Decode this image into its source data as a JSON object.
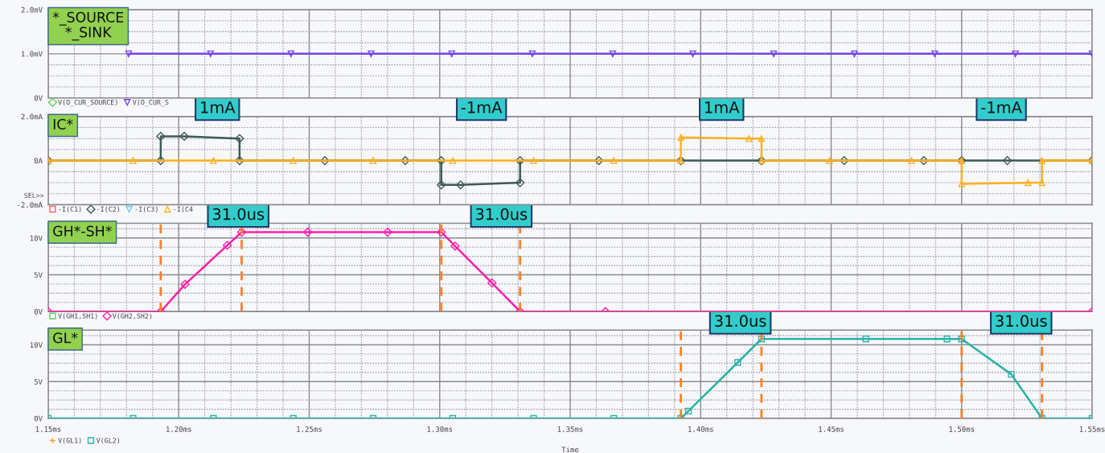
{
  "chart_data": [
    {
      "type": "line",
      "title": "*_SOURCE\n*_SINK",
      "xlim": [
        1.15,
        1.55
      ],
      "xticks": [
        1.15,
        1.2,
        1.25,
        1.3,
        1.35,
        1.4,
        1.45,
        1.5,
        1.55
      ],
      "tick_labels": "y",
      "ylim": [
        0,
        2
      ],
      "yticks": [
        {
          "value": 0,
          "label": "0V"
        },
        {
          "value": 1,
          "label": "1.0mV"
        },
        {
          "value": 2,
          "label": "2.0mV"
        }
      ],
      "grid": true,
      "legend": "bottom left",
      "series": [
        {
          "name": "V(O_CUR_SOURCE)",
          "color": "#5fd35f",
          "marker": "diamond"
        },
        {
          "name": "V(O_CUR_S",
          "color": "#7444e8",
          "marker": "triangle_down",
          "x": [
            1.1808,
            1.2122,
            1.243,
            1.2737,
            1.3046,
            1.3355,
            1.3663,
            1.397,
            1.428,
            1.4589,
            1.4897,
            1.5206,
            1.55
          ],
          "values": [
            1,
            1,
            1,
            1,
            1,
            1,
            1,
            1,
            1,
            1,
            1,
            1,
            1
          ]
        }
      ]
    },
    {
      "type": "line",
      "title": "IC*",
      "xlim": [
        1.15,
        1.55
      ],
      "xticks": [
        1.15,
        1.2,
        1.25,
        1.3,
        1.35,
        1.4,
        1.45,
        1.5,
        1.55
      ],
      "tick_labels": "y",
      "ylim": [
        -2,
        2
      ],
      "yticks": [
        {
          "value": -2,
          "label": "-2.0mA"
        },
        {
          "value": 0,
          "label": "0A"
        },
        {
          "value": 2,
          "label": "2.0mA"
        }
      ],
      "grid": true,
      "legend": "bottom left",
      "annotations": [
        "1mA",
        "-1mA",
        "1mA",
        "-1mA",
        "SEL>>"
      ],
      "series": [
        {
          "name": "-I(C1)",
          "color": "#ff6666",
          "marker": "square"
        },
        {
          "name": "-I(C2)",
          "color": "#3d5a56",
          "marker": "diamond",
          "x": [
            1.15,
            1.1931,
            1.1931,
            1.2021,
            1.2233,
            1.2233,
            1.256,
            1.2868,
            1.3006,
            1.3006,
            1.308,
            1.3308,
            1.3308,
            1.361,
            1.3924,
            1.4233,
            1.455,
            1.4855,
            1.5,
            1.5175,
            1.55
          ],
          "values": [
            0,
            0,
            1.1,
            1.1,
            1.0,
            0,
            0,
            0,
            0,
            -1.1,
            -1.1,
            -1.0,
            0,
            0,
            0,
            0,
            0,
            0,
            0,
            0,
            0
          ]
        },
        {
          "name": "-I(C3)",
          "color": "#66ccff",
          "marker": "triangle_down"
        },
        {
          "name": "-I(C4",
          "color": "#ffb020",
          "marker": "triangle",
          "x": [
            1.15,
            1.1825,
            1.2133,
            1.2439,
            1.2745,
            1.305,
            1.336,
            1.3667,
            1.3924,
            1.3924,
            1.4185,
            1.4233,
            1.4233,
            1.4494,
            1.4808,
            1.5,
            1.5,
            1.5254,
            1.5308,
            1.5308,
            1.55
          ],
          "values": [
            0,
            0,
            0,
            0,
            0,
            0,
            0,
            0,
            0,
            1.05,
            1.0,
            1.0,
            0,
            0,
            0,
            0,
            -1.05,
            -1.0,
            -1.0,
            0,
            0
          ]
        }
      ]
    },
    {
      "type": "line",
      "title": "GH*-SH*",
      "xlim": [
        1.15,
        1.55
      ],
      "xticks": [
        1.15,
        1.2,
        1.25,
        1.3,
        1.35,
        1.4,
        1.45,
        1.5,
        1.55
      ],
      "tick_labels": "y",
      "ylim": [
        0,
        12
      ],
      "yticks": [
        {
          "value": 0,
          "label": "0V"
        },
        {
          "value": 5,
          "label": "5V"
        },
        {
          "value": 10,
          "label": "10V"
        }
      ],
      "grid": true,
      "legend": "bottom left",
      "annotations": [
        "31.0us",
        "31.0us"
      ],
      "ref_lines": [
        {
          "axis": "x",
          "value": 1.1931,
          "color": "#ff7f27",
          "line_style": "dashed"
        },
        {
          "axis": "x",
          "value": 1.2241,
          "color": "#ff7f27",
          "line_style": "dashed"
        },
        {
          "axis": "x",
          "value": 1.3006,
          "color": "#ff7f27",
          "line_style": "dashed"
        },
        {
          "axis": "x",
          "value": 1.3308,
          "color": "#ff7f27",
          "line_style": "dashed"
        }
      ],
      "series": [
        {
          "name": "V(GH1,SH1)",
          "color": "#5fd35f",
          "marker": "square"
        },
        {
          "name": "V(GH2,SH2)",
          "color": "#ff1fa8",
          "marker": "diamond",
          "x": [
            1.15,
            1.1931,
            1.2024,
            1.2186,
            1.2241,
            1.2494,
            1.28,
            1.3006,
            1.3059,
            1.32,
            1.3308,
            1.3635,
            1.55
          ],
          "values": [
            0,
            0,
            3.7,
            9.0,
            10.8,
            10.8,
            10.8,
            10.8,
            8.9,
            3.9,
            0,
            0,
            0
          ]
        }
      ]
    },
    {
      "type": "line",
      "title": "GL*",
      "xlabel": "Time",
      "xlim": [
        1.15,
        1.55
      ],
      "xticks": [
        {
          "value": 1.15,
          "label": "1.15ms"
        },
        {
          "value": 1.2,
          "label": "1.20ms"
        },
        {
          "value": 1.25,
          "label": "1.25ms"
        },
        {
          "value": 1.3,
          "label": "1.30ms"
        },
        {
          "value": 1.35,
          "label": "1.35ms"
        },
        {
          "value": 1.4,
          "label": "1.40ms"
        },
        {
          "value": 1.45,
          "label": "1.45ms"
        },
        {
          "value": 1.5,
          "label": "1.50ms"
        },
        {
          "value": 1.55,
          "label": "1.55ms"
        }
      ],
      "ylim": [
        0,
        12
      ],
      "yticks": [
        {
          "value": 0,
          "label": "0V"
        },
        {
          "value": 5,
          "label": "5V"
        },
        {
          "value": 10,
          "label": "10V"
        }
      ],
      "grid": true,
      "legend": "bottom left",
      "annotations": [
        "31.0us",
        "31.0us"
      ],
      "ref_lines": [
        {
          "axis": "x",
          "value": 1.3924,
          "color": "#ff7f27",
          "line_style": "dashed"
        },
        {
          "axis": "x",
          "value": 1.4233,
          "color": "#ff7f27",
          "line_style": "dashed"
        },
        {
          "axis": "x",
          "value": 1.5,
          "color": "#ff7f27",
          "line_style": "dashed"
        },
        {
          "axis": "x",
          "value": 1.5308,
          "color": "#ff7f27",
          "line_style": "dashed"
        }
      ],
      "series": [
        {
          "name": "V(GL1)",
          "color": "#ff9f1a",
          "marker": "cross"
        },
        {
          "name": "V(GL2)",
          "color": "#2ab3a8",
          "marker": "square",
          "x": [
            1.15,
            1.1825,
            1.2133,
            1.2439,
            1.2745,
            1.305,
            1.336,
            1.3667,
            1.3924,
            1.3953,
            1.4142,
            1.4233,
            1.4633,
            1.4944,
            1.5,
            1.519,
            1.5308,
            1.55
          ],
          "values": [
            0,
            0,
            0,
            0,
            0,
            0,
            0,
            0,
            0,
            1.0,
            7.6,
            10.8,
            10.8,
            10.8,
            10.8,
            6.0,
            0,
            0
          ]
        }
      ]
    }
  ]
}
